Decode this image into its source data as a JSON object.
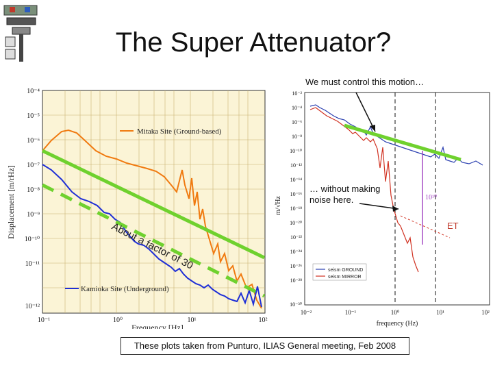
{
  "slide": {
    "title": "The Super Attenuator?",
    "note_top": "We must control this motion…",
    "note_mid_line1": "… without making",
    "note_mid_line2": "noise here.",
    "factor_text": "About a factor of 30",
    "et_label": "ET",
    "caption": "These plots taken from Punturo, ILIAS General meeting, Feb 2008"
  },
  "left_plot": {
    "ylabel": "Displacement [m/rHz]",
    "xlabel": "Frequency [Hz]",
    "legend_top": "Mitaka Site (Ground-based)",
    "legend_bottom": "Kamioka Site (Underground)",
    "y_ticks": [
      "10⁻⁴",
      "10⁻⁵",
      "10⁻⁶",
      "10⁻⁷",
      "10⁻⁸",
      "10⁻⁹",
      "10⁻¹⁰",
      "10⁻¹¹",
      "10⁻¹²"
    ],
    "x_ticks": [
      "10⁻¹",
      "10⁰",
      "10¹",
      "10²"
    ]
  },
  "right_plot": {
    "ylabel": "m/√Hz",
    "xlabel": "frequency (Hz)",
    "y_ticks": [
      "10⁻²",
      "10⁻⁴",
      "10⁻⁶",
      "10⁻⁸",
      "10⁻¹⁰",
      "10⁻¹²",
      "10⁻¹⁴",
      "10⁻¹⁶",
      "10⁻¹⁸",
      "10⁻²⁰",
      "10⁻²²",
      "10⁻²⁴",
      "10⁻²⁶",
      "10⁻²⁸",
      "10⁻³⁰"
    ],
    "x_ticks": [
      "10⁻²",
      "10⁻¹",
      "10⁰",
      "10¹",
      "10²"
    ],
    "legend": [
      "seism GROUND",
      "seism MIRROR"
    ],
    "ratio_label": "10¹⁰"
  },
  "colors": {
    "mitaka": "#f07a10",
    "kamioka": "#1f2fd6",
    "fit": "#6fd12e",
    "ground": "#2a3fb0",
    "mirror": "#d03020",
    "marker": "#a040c0"
  }
}
